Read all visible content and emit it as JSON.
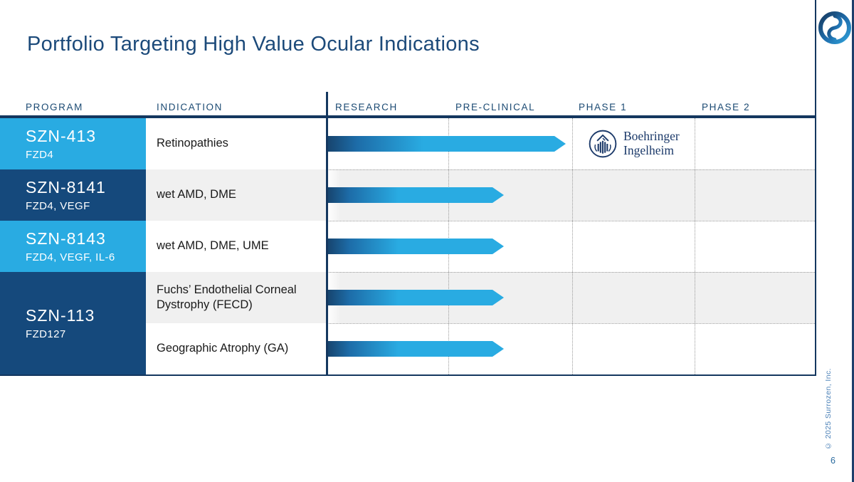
{
  "slide": {
    "title": "Portfolio Targeting High Value Ocular Indications",
    "page_number": "6",
    "copyright_notice": "© 2025 Surrozen, Inc."
  },
  "colors": {
    "accent_light_blue": "#29ABE2",
    "brand_navy": "#15497C",
    "header_text_navy": "#1B4A73",
    "rule_navy": "#14375F",
    "row_stripe_gray": "#F0F0F0",
    "side_text_blue": "#4D82B8",
    "arrow_gradient_start": "#17456F",
    "arrow_gradient_end": "#29ABE2"
  },
  "table": {
    "columns": [
      "PROGRAM",
      "INDICATION",
      "RESEARCH",
      "PRE-CLINICAL",
      "PHASE 1",
      "PHASE 2"
    ],
    "programs": [
      {
        "program": "SZN-413",
        "target": "FZD4"
      },
      {
        "program": "SZN-8141",
        "target": "FZD4, VEGF"
      },
      {
        "program": "SZN-8143",
        "target": "FZD4, VEGF, IL-6"
      },
      {
        "program": "SZN-113",
        "target": "FZD127"
      }
    ],
    "rows": [
      {
        "indication": "Retinopathies"
      },
      {
        "indication": "wet AMD, DME"
      },
      {
        "indication": "wet AMD, DME, UME"
      },
      {
        "indication": "Fuchs’ Endothelial Corneal Dystrophy (FECD)"
      },
      {
        "indication": "Geographic Atrophy (GA)"
      }
    ]
  },
  "partner": {
    "name": "Boehringer Ingelheim",
    "line1": "Boehringer",
    "line2": "Ingelheim"
  },
  "chart_data": {
    "type": "bar",
    "title": "Portfolio Targeting High Value Ocular Indications",
    "phases": [
      "RESEARCH",
      "PRE-CLINICAL",
      "PHASE 1",
      "PHASE 2"
    ],
    "xlim_phases": [
      0,
      4
    ],
    "grid": "dotted column separators",
    "legend": false,
    "bars": [
      {
        "program": "SZN-413",
        "target": "FZD4",
        "indication": "Retinopathies",
        "progress_phases": 1.95,
        "stage_reached": "completing Pre-clinical",
        "partner": "Boehringer Ingelheim"
      },
      {
        "program": "SZN-8141",
        "target": "FZD4, VEGF",
        "indication": "wet AMD, DME",
        "progress_phases": 1.44,
        "stage_reached": "mid Pre-clinical",
        "partner": ""
      },
      {
        "program": "SZN-8143",
        "target": "FZD4, VEGF, IL-6",
        "indication": "wet AMD, DME, UME",
        "progress_phases": 1.44,
        "stage_reached": "mid Pre-clinical",
        "partner": ""
      },
      {
        "program": "SZN-113",
        "target": "FZD127",
        "indication": "Fuchs’ Endothelial Corneal Dystrophy (FECD)",
        "progress_phases": 1.44,
        "stage_reached": "mid Pre-clinical",
        "partner": ""
      },
      {
        "program": "SZN-113",
        "target": "FZD127",
        "indication": "Geographic Atrophy (GA)",
        "progress_phases": 1.44,
        "stage_reached": "mid Pre-clinical",
        "partner": ""
      }
    ]
  }
}
